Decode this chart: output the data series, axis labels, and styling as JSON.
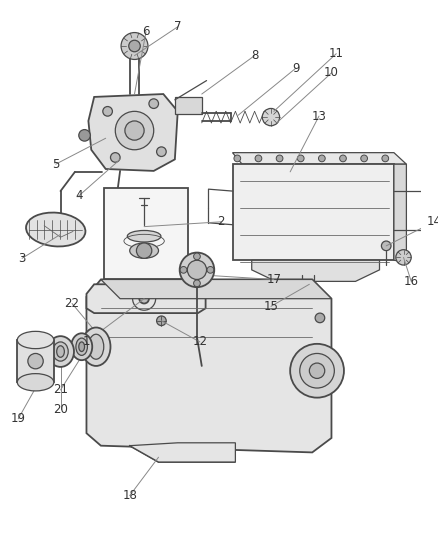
{
  "bg_color": "#ffffff",
  "lc": "#4a4a4a",
  "lc2": "#6a6a6a",
  "lc_light": "#888888",
  "lc_label": "#555555",
  "figsize": [
    4.38,
    5.33
  ],
  "dpi": 100,
  "xlim": [
    0,
    438
  ],
  "ylim": [
    0,
    533
  ],
  "label_fs": 8.5,
  "label_color": "#333333"
}
